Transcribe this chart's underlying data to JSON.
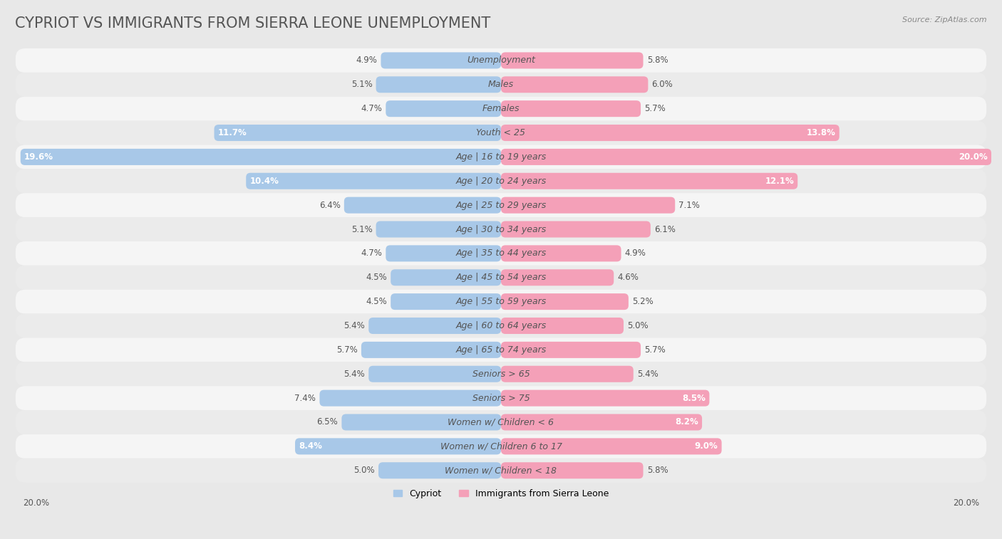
{
  "title": "CYPRIOT VS IMMIGRANTS FROM SIERRA LEONE UNEMPLOYMENT",
  "source": "Source: ZipAtlas.com",
  "categories": [
    "Unemployment",
    "Males",
    "Females",
    "Youth < 25",
    "Age | 16 to 19 years",
    "Age | 20 to 24 years",
    "Age | 25 to 29 years",
    "Age | 30 to 34 years",
    "Age | 35 to 44 years",
    "Age | 45 to 54 years",
    "Age | 55 to 59 years",
    "Age | 60 to 64 years",
    "Age | 65 to 74 years",
    "Seniors > 65",
    "Seniors > 75",
    "Women w/ Children < 6",
    "Women w/ Children 6 to 17",
    "Women w/ Children < 18"
  ],
  "cypriot": [
    4.9,
    5.1,
    4.7,
    11.7,
    19.6,
    10.4,
    6.4,
    5.1,
    4.7,
    4.5,
    4.5,
    5.4,
    5.7,
    5.4,
    7.4,
    6.5,
    8.4,
    5.0
  ],
  "sierra_leone": [
    5.8,
    6.0,
    5.7,
    13.8,
    20.0,
    12.1,
    7.1,
    6.1,
    4.9,
    4.6,
    5.2,
    5.0,
    5.7,
    5.4,
    8.5,
    8.2,
    9.0,
    5.8
  ],
  "cypriot_color": "#a8c8e8",
  "sierra_leone_color": "#f4a0b8",
  "bar_height": 0.68,
  "max_val": 20.0,
  "background_color": "#e8e8e8",
  "row_bg_color": "#f5f5f5",
  "row_alt_color": "#ebebeb",
  "legend_labels": [
    "Cypriot",
    "Immigrants from Sierra Leone"
  ],
  "title_fontsize": 15,
  "label_fontsize": 9,
  "value_fontsize": 8.5,
  "white_text_threshold": 8.0
}
